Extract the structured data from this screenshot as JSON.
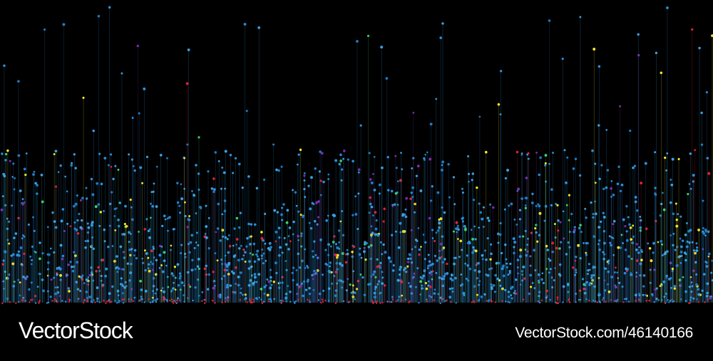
{
  "watermark": {
    "logo": "VectorStock",
    "url": "VectorStock.com/46140166"
  }
}
